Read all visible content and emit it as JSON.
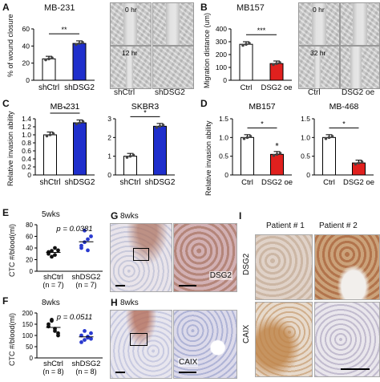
{
  "panels": {
    "A": {
      "label": "A",
      "title": "MB-231",
      "ylabel": "% of wound closure",
      "sig": "**",
      "chart_data": {
        "type": "bar",
        "categories": [
          "shCtrl",
          "shDSG2"
        ],
        "values": [
          25,
          43
        ],
        "colors": [
          "#ffffff",
          "#1f2fcc"
        ],
        "yticks": [
          "0",
          "20",
          "40",
          "60"
        ],
        "ylim": [
          0,
          60
        ]
      },
      "images": [
        {
          "time": "0 hr",
          "label": "shCtrl"
        },
        {
          "time": "12 hr",
          "label": "shDSG2"
        }
      ]
    },
    "B": {
      "label": "B",
      "title": "MB157",
      "ylabel": "Migration distance (um)",
      "sig": "***",
      "chart_data": {
        "type": "bar",
        "categories": [
          "Ctrl",
          "DSG2 oe"
        ],
        "values": [
          280,
          130
        ],
        "colors": [
          "#ffffff",
          "#e0201e"
        ],
        "yticks": [
          "0",
          "100",
          "200",
          "300",
          "400"
        ],
        "ylim": [
          0,
          400
        ]
      },
      "images": [
        {
          "time": "0 hr",
          "label": "Ctrl"
        },
        {
          "time": "32 hr",
          "label": "DSG2 oe"
        }
      ]
    },
    "C": {
      "label": "C",
      "ylabel": "Relative invasion ability",
      "chart_data": [
        {
          "type": "bar",
          "title": "MB-231",
          "categories": [
            "shCtrl",
            "shDSG2"
          ],
          "values": [
            1.0,
            1.3
          ],
          "colors": [
            "#ffffff",
            "#1f2fcc"
          ],
          "yticks": [
            "0",
            "0.2",
            "0.4",
            "0.6",
            "0.8",
            "1.0",
            "1.2",
            "1.4"
          ],
          "ylim": [
            0,
            1.4
          ],
          "sig": "*"
        },
        {
          "type": "bar",
          "title": "SKBR3",
          "categories": [
            "shCtrl",
            "shDSG2"
          ],
          "values": [
            1.0,
            2.6
          ],
          "colors": [
            "#ffffff",
            "#1f2fcc"
          ],
          "yticks": [
            "0",
            "1",
            "2",
            "3"
          ],
          "ylim": [
            0,
            3
          ],
          "sig": "*"
        }
      ]
    },
    "D": {
      "label": "D",
      "ylabel": "Relative invasion ability",
      "chart_data": [
        {
          "type": "bar",
          "title": "MB157",
          "categories": [
            "Ctrl",
            "DSG2 oe"
          ],
          "values": [
            1.0,
            0.55
          ],
          "colors": [
            "#ffffff",
            "#e0201e"
          ],
          "yticks": [
            "0",
            "0.5",
            "1.0",
            "1.5"
          ],
          "ylim": [
            0,
            1.5
          ],
          "sig": "*",
          "star": "*"
        },
        {
          "type": "bar",
          "title": "MB-468",
          "categories": [
            "Ctrl",
            "DSG2 oe"
          ],
          "values": [
            1.0,
            0.32
          ],
          "colors": [
            "#ffffff",
            "#e0201e"
          ],
          "yticks": [
            "0",
            "0.5",
            "1.0",
            "1.5"
          ],
          "ylim": [
            0,
            1.5
          ],
          "sig": "*"
        }
      ]
    },
    "E": {
      "label": "E",
      "title": "5wks",
      "ylabel": "CTC #/blood(ml)",
      "pvalue": "p = 0.0381",
      "chart_data": {
        "type": "scatter",
        "categories": [
          "shCtrl",
          "shDSG2"
        ],
        "ylim": [
          0,
          80
        ],
        "yticks": [
          "0",
          "20",
          "40",
          "60",
          "80"
        ],
        "series": [
          {
            "values": [
              30,
              25,
              40,
              36,
              33,
              35,
              28
            ]
          },
          {
            "values": [
              40,
              50,
              55,
              60,
              44,
              70,
              36
            ]
          }
        ],
        "group_n": [
          "(n = 7)",
          "(n = 7)"
        ]
      }
    },
    "F": {
      "label": "F",
      "title": "8wks",
      "ylabel": "CTC #/blood(ml)",
      "pvalue": "p = 0.0511",
      "chart_data": {
        "type": "scatter",
        "categories": [
          "shCtrl",
          "shDSG2"
        ],
        "ylim": [
          0,
          200
        ],
        "yticks": [
          "0",
          "50",
          "100",
          "150",
          "200"
        ],
        "series": [
          {
            "values": [
              150,
              170,
              120,
              100,
              140,
              165,
              130,
              110
            ]
          },
          {
            "values": [
              100,
              80,
              95,
              110,
              70,
              120,
              90,
              85
            ]
          }
        ],
        "group_n": [
          "(n = 8)",
          "(n = 8)"
        ]
      }
    },
    "G": {
      "label": "G",
      "title": "8wks",
      "stain": "DSG2"
    },
    "H": {
      "label": "H",
      "title": "8wks",
      "stain": "CAIX"
    },
    "I": {
      "label": "I",
      "patients": [
        "Patient # 1",
        "Patient # 2"
      ],
      "rows": [
        "DSG2",
        "CAIX"
      ]
    }
  }
}
